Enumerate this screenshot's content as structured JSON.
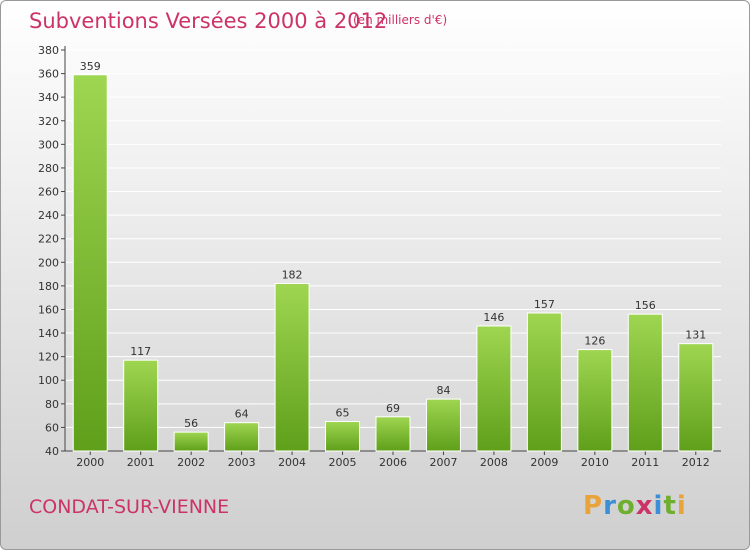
{
  "title": "Subventions Versées 2000 à 2012",
  "units": "(en milliers d'€)",
  "commune": "CONDAT-SUR-VIENNE",
  "logo": {
    "letters": [
      "P",
      "r",
      "o",
      "x",
      "i",
      "t",
      "i"
    ],
    "colors": [
      "#e8a33b",
      "#3b8fd6",
      "#6fae2e",
      "#cc3366",
      "#3b8fd6",
      "#6fae2e",
      "#e8a33b"
    ]
  },
  "colors": {
    "title": "#cc3366",
    "bar_top": "#9fd651",
    "bar_bottom": "#5f9f1a",
    "grid": "#ffffff"
  },
  "chart_data": {
    "type": "bar",
    "title": "Subventions Versées 2000 à 2012",
    "subtitle": "(en milliers d'€)",
    "categories": [
      "2000",
      "2001",
      "2002",
      "2003",
      "2004",
      "2005",
      "2006",
      "2007",
      "2008",
      "2009",
      "2010",
      "2011",
      "2012"
    ],
    "values": [
      359,
      117,
      56,
      64,
      182,
      65,
      69,
      84,
      146,
      157,
      126,
      156,
      131
    ],
    "ylim": [
      40,
      380
    ],
    "yticks": [
      40,
      60,
      80,
      100,
      120,
      140,
      160,
      180,
      200,
      220,
      240,
      260,
      280,
      300,
      320,
      340,
      360,
      380
    ],
    "grid": true,
    "data_labels": true
  }
}
